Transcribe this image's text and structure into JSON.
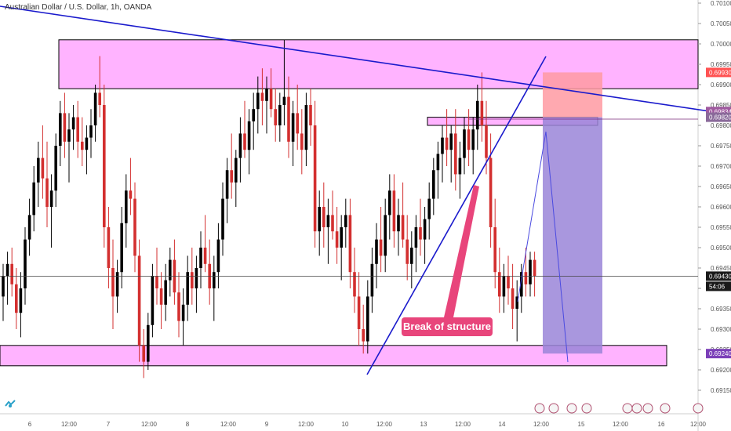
{
  "header": {
    "title": "Australian Dollar / U.S. Dollar, 1h, OANDA"
  },
  "annotation": {
    "text": "Break of structure"
  },
  "icons": {
    "logo": "tradingview-logo-icon",
    "events": [
      "flag-us-icon",
      "flag-au-icon",
      "flag-eu-icon"
    ]
  },
  "colors": {
    "bull": "#000000",
    "bear": "#d32f2f",
    "zone": "#ff99ff",
    "trend": "#1a1acc",
    "stop": "#ff9aa2",
    "target": "#9a85d8",
    "annotation": "#e8457b",
    "price_label": "#1a1a1a"
  },
  "chart_data": {
    "type": "candlestick",
    "symbol": "Australian Dollar / U.S. Dollar",
    "timeframe": "1h",
    "source": "OANDA",
    "ylim": [
      0.6915,
      0.701
    ],
    "y_ticks": [
      "0.70100",
      "0.70050",
      "0.70000",
      "0.69950",
      "0.69900",
      "0.69850",
      "0.69800",
      "0.69750",
      "0.69700",
      "0.69650",
      "0.69600",
      "0.69550",
      "0.69500",
      "0.69450",
      "0.69400",
      "0.69350",
      "0.69300",
      "0.69250",
      "0.69200",
      "0.69150"
    ],
    "x_ticks": [
      "6",
      "12:00",
      "7",
      "12:00",
      "8",
      "12:00",
      "9",
      "12:00",
      "10",
      "12:00",
      "13",
      "12:00",
      "14",
      "12:00",
      "15",
      "12:00",
      "16",
      "12:00"
    ],
    "price_labels": [
      {
        "text": "0.69930",
        "value": 0.6993,
        "color": "#ff5252"
      },
      {
        "text": "0.69834",
        "value": 0.69834,
        "color": "#a05aa0"
      },
      {
        "text": "0.69820",
        "value": 0.6982,
        "color": "#8a6a9a"
      },
      {
        "text": "0.69430",
        "value": 0.6943,
        "color": "#1a1a1a"
      },
      {
        "text": "54:06",
        "value": 0.69405,
        "color": "#1a1a1a"
      },
      {
        "text": "0.69240",
        "value": 0.6924,
        "color": "#7b3fb8"
      }
    ],
    "current_price": 0.6943,
    "zones": [
      {
        "name": "resistance",
        "from": 0.6989,
        "to": 0.7001
      },
      {
        "name": "support",
        "from": 0.6921,
        "to": 0.6926
      },
      {
        "name": "supply",
        "from": 0.698,
        "to": 0.6982
      }
    ],
    "position": {
      "type": "short",
      "entry": 0.6982,
      "stop": 0.6993,
      "target": 0.6924
    },
    "candles": [
      {
        "o": 0.6938,
        "h": 0.6946,
        "l": 0.6932,
        "c": 0.6943
      },
      {
        "o": 0.6943,
        "h": 0.6949,
        "l": 0.6936,
        "c": 0.6946
      },
      {
        "o": 0.6946,
        "h": 0.695,
        "l": 0.6938,
        "c": 0.6941
      },
      {
        "o": 0.6941,
        "h": 0.6945,
        "l": 0.693,
        "c": 0.6934
      },
      {
        "o": 0.6934,
        "h": 0.6944,
        "l": 0.6928,
        "c": 0.694
      },
      {
        "o": 0.694,
        "h": 0.6955,
        "l": 0.6936,
        "c": 0.6952
      },
      {
        "o": 0.6952,
        "h": 0.6962,
        "l": 0.6948,
        "c": 0.6958
      },
      {
        "o": 0.6958,
        "h": 0.697,
        "l": 0.6954,
        "c": 0.6966
      },
      {
        "o": 0.6966,
        "h": 0.6976,
        "l": 0.696,
        "c": 0.6972
      },
      {
        "o": 0.6972,
        "h": 0.698,
        "l": 0.6962,
        "c": 0.6967
      },
      {
        "o": 0.6967,
        "h": 0.6976,
        "l": 0.6955,
        "c": 0.696
      },
      {
        "o": 0.696,
        "h": 0.6968,
        "l": 0.695,
        "c": 0.6964
      },
      {
        "o": 0.6964,
        "h": 0.6978,
        "l": 0.696,
        "c": 0.6975
      },
      {
        "o": 0.6975,
        "h": 0.6986,
        "l": 0.697,
        "c": 0.6983
      },
      {
        "o": 0.6983,
        "h": 0.6988,
        "l": 0.6972,
        "c": 0.6976
      },
      {
        "o": 0.6976,
        "h": 0.6983,
        "l": 0.6966,
        "c": 0.6979
      },
      {
        "o": 0.6979,
        "h": 0.6985,
        "l": 0.6974,
        "c": 0.6982
      },
      {
        "o": 0.6982,
        "h": 0.6986,
        "l": 0.6972,
        "c": 0.6976
      },
      {
        "o": 0.6976,
        "h": 0.6982,
        "l": 0.697,
        "c": 0.6974
      },
      {
        "o": 0.6974,
        "h": 0.698,
        "l": 0.6968,
        "c": 0.6977
      },
      {
        "o": 0.6977,
        "h": 0.6984,
        "l": 0.6972,
        "c": 0.698
      },
      {
        "o": 0.698,
        "h": 0.699,
        "l": 0.6976,
        "c": 0.6988
      },
      {
        "o": 0.6988,
        "h": 0.6997,
        "l": 0.6982,
        "c": 0.6985
      },
      {
        "o": 0.6985,
        "h": 0.699,
        "l": 0.695,
        "c": 0.6955
      },
      {
        "o": 0.6955,
        "h": 0.696,
        "l": 0.694,
        "c": 0.6945
      },
      {
        "o": 0.6945,
        "h": 0.6952,
        "l": 0.693,
        "c": 0.6938
      },
      {
        "o": 0.6938,
        "h": 0.6947,
        "l": 0.6934,
        "c": 0.6944
      },
      {
        "o": 0.6944,
        "h": 0.696,
        "l": 0.694,
        "c": 0.6956
      },
      {
        "o": 0.6956,
        "h": 0.6968,
        "l": 0.695,
        "c": 0.6964
      },
      {
        "o": 0.6964,
        "h": 0.6972,
        "l": 0.6958,
        "c": 0.6962
      },
      {
        "o": 0.6962,
        "h": 0.6966,
        "l": 0.6944,
        "c": 0.6948
      },
      {
        "o": 0.6948,
        "h": 0.6952,
        "l": 0.6922,
        "c": 0.6926
      },
      {
        "o": 0.6926,
        "h": 0.693,
        "l": 0.6918,
        "c": 0.6922
      },
      {
        "o": 0.6922,
        "h": 0.6934,
        "l": 0.692,
        "c": 0.6931
      },
      {
        "o": 0.6931,
        "h": 0.6946,
        "l": 0.6928,
        "c": 0.6943
      },
      {
        "o": 0.6943,
        "h": 0.695,
        "l": 0.6936,
        "c": 0.694
      },
      {
        "o": 0.694,
        "h": 0.6944,
        "l": 0.693,
        "c": 0.6936
      },
      {
        "o": 0.6936,
        "h": 0.6946,
        "l": 0.6932,
        "c": 0.6942
      },
      {
        "o": 0.6942,
        "h": 0.695,
        "l": 0.6938,
        "c": 0.6947
      },
      {
        "o": 0.6947,
        "h": 0.6952,
        "l": 0.6936,
        "c": 0.6939
      },
      {
        "o": 0.6939,
        "h": 0.6944,
        "l": 0.6928,
        "c": 0.6932
      },
      {
        "o": 0.6932,
        "h": 0.694,
        "l": 0.6926,
        "c": 0.6936
      },
      {
        "o": 0.6936,
        "h": 0.6948,
        "l": 0.6932,
        "c": 0.6944
      },
      {
        "o": 0.6944,
        "h": 0.695,
        "l": 0.6936,
        "c": 0.694
      },
      {
        "o": 0.694,
        "h": 0.6948,
        "l": 0.6934,
        "c": 0.6945
      },
      {
        "o": 0.6945,
        "h": 0.6954,
        "l": 0.694,
        "c": 0.695
      },
      {
        "o": 0.695,
        "h": 0.6958,
        "l": 0.6944,
        "c": 0.6946
      },
      {
        "o": 0.6946,
        "h": 0.6952,
        "l": 0.6936,
        "c": 0.694
      },
      {
        "o": 0.694,
        "h": 0.6948,
        "l": 0.6932,
        "c": 0.6944
      },
      {
        "o": 0.6944,
        "h": 0.6956,
        "l": 0.694,
        "c": 0.6952
      },
      {
        "o": 0.6952,
        "h": 0.6966,
        "l": 0.6948,
        "c": 0.6962
      },
      {
        "o": 0.6962,
        "h": 0.6972,
        "l": 0.6956,
        "c": 0.6969
      },
      {
        "o": 0.6969,
        "h": 0.6978,
        "l": 0.6962,
        "c": 0.6966
      },
      {
        "o": 0.6966,
        "h": 0.6974,
        "l": 0.696,
        "c": 0.6972
      },
      {
        "o": 0.6972,
        "h": 0.6982,
        "l": 0.6966,
        "c": 0.6978
      },
      {
        "o": 0.6978,
        "h": 0.6986,
        "l": 0.6972,
        "c": 0.6974
      },
      {
        "o": 0.6974,
        "h": 0.6984,
        "l": 0.6968,
        "c": 0.6981
      },
      {
        "o": 0.6981,
        "h": 0.6988,
        "l": 0.6974,
        "c": 0.6984
      },
      {
        "o": 0.6984,
        "h": 0.6992,
        "l": 0.6978,
        "c": 0.6988
      },
      {
        "o": 0.6988,
        "h": 0.6994,
        "l": 0.698,
        "c": 0.6986
      },
      {
        "o": 0.6986,
        "h": 0.6992,
        "l": 0.6978,
        "c": 0.6989
      },
      {
        "o": 0.6989,
        "h": 0.6994,
        "l": 0.6982,
        "c": 0.6984
      },
      {
        "o": 0.6984,
        "h": 0.6989,
        "l": 0.6976,
        "c": 0.698
      },
      {
        "o": 0.698,
        "h": 0.6988,
        "l": 0.6976,
        "c": 0.6985
      },
      {
        "o": 0.6985,
        "h": 0.7001,
        "l": 0.698,
        "c": 0.6987
      },
      {
        "o": 0.6987,
        "h": 0.6992,
        "l": 0.6972,
        "c": 0.6976
      },
      {
        "o": 0.6976,
        "h": 0.6986,
        "l": 0.697,
        "c": 0.6983
      },
      {
        "o": 0.6983,
        "h": 0.699,
        "l": 0.6974,
        "c": 0.6978
      },
      {
        "o": 0.6978,
        "h": 0.6984,
        "l": 0.6968,
        "c": 0.6974
      },
      {
        "o": 0.6974,
        "h": 0.6988,
        "l": 0.697,
        "c": 0.6985
      },
      {
        "o": 0.6985,
        "h": 0.6989,
        "l": 0.6975,
        "c": 0.698
      },
      {
        "o": 0.698,
        "h": 0.6986,
        "l": 0.695,
        "c": 0.6954
      },
      {
        "o": 0.6954,
        "h": 0.6964,
        "l": 0.6948,
        "c": 0.696
      },
      {
        "o": 0.696,
        "h": 0.6966,
        "l": 0.695,
        "c": 0.6955
      },
      {
        "o": 0.6955,
        "h": 0.6962,
        "l": 0.6946,
        "c": 0.6958
      },
      {
        "o": 0.6958,
        "h": 0.6964,
        "l": 0.6952,
        "c": 0.6954
      },
      {
        "o": 0.6954,
        "h": 0.696,
        "l": 0.6946,
        "c": 0.695
      },
      {
        "o": 0.695,
        "h": 0.6958,
        "l": 0.6942,
        "c": 0.6955
      },
      {
        "o": 0.6955,
        "h": 0.6962,
        "l": 0.695,
        "c": 0.6958
      },
      {
        "o": 0.6958,
        "h": 0.6962,
        "l": 0.694,
        "c": 0.6944
      },
      {
        "o": 0.6944,
        "h": 0.695,
        "l": 0.6934,
        "c": 0.6938
      },
      {
        "o": 0.6938,
        "h": 0.6944,
        "l": 0.6926,
        "c": 0.693
      },
      {
        "o": 0.693,
        "h": 0.6936,
        "l": 0.6924,
        "c": 0.6927
      },
      {
        "o": 0.6927,
        "h": 0.6942,
        "l": 0.6924,
        "c": 0.6938
      },
      {
        "o": 0.6938,
        "h": 0.695,
        "l": 0.6934,
        "c": 0.6946
      },
      {
        "o": 0.6946,
        "h": 0.6956,
        "l": 0.694,
        "c": 0.6952
      },
      {
        "o": 0.6952,
        "h": 0.696,
        "l": 0.6944,
        "c": 0.6948
      },
      {
        "o": 0.6948,
        "h": 0.6962,
        "l": 0.6944,
        "c": 0.6958
      },
      {
        "o": 0.6958,
        "h": 0.6968,
        "l": 0.6952,
        "c": 0.6964
      },
      {
        "o": 0.6964,
        "h": 0.6968,
        "l": 0.695,
        "c": 0.6954
      },
      {
        "o": 0.6954,
        "h": 0.6962,
        "l": 0.6948,
        "c": 0.6958
      },
      {
        "o": 0.6958,
        "h": 0.6966,
        "l": 0.695,
        "c": 0.6952
      },
      {
        "o": 0.6952,
        "h": 0.6958,
        "l": 0.6942,
        "c": 0.6946
      },
      {
        "o": 0.6946,
        "h": 0.6954,
        "l": 0.694,
        "c": 0.695
      },
      {
        "o": 0.695,
        "h": 0.6958,
        "l": 0.6944,
        "c": 0.6955
      },
      {
        "o": 0.6955,
        "h": 0.6962,
        "l": 0.6948,
        "c": 0.6952
      },
      {
        "o": 0.6952,
        "h": 0.696,
        "l": 0.6946,
        "c": 0.6957
      },
      {
        "o": 0.6957,
        "h": 0.6966,
        "l": 0.6952,
        "c": 0.6962
      },
      {
        "o": 0.6962,
        "h": 0.6972,
        "l": 0.6958,
        "c": 0.6969
      },
      {
        "o": 0.6969,
        "h": 0.6976,
        "l": 0.6962,
        "c": 0.6973
      },
      {
        "o": 0.6973,
        "h": 0.698,
        "l": 0.6966,
        "c": 0.6977
      },
      {
        "o": 0.6977,
        "h": 0.6984,
        "l": 0.697,
        "c": 0.6974
      },
      {
        "o": 0.6974,
        "h": 0.698,
        "l": 0.6966,
        "c": 0.6978
      },
      {
        "o": 0.6978,
        "h": 0.6984,
        "l": 0.6964,
        "c": 0.6968
      },
      {
        "o": 0.6968,
        "h": 0.6976,
        "l": 0.6962,
        "c": 0.6972
      },
      {
        "o": 0.6972,
        "h": 0.6982,
        "l": 0.6968,
        "c": 0.6979
      },
      {
        "o": 0.6979,
        "h": 0.6984,
        "l": 0.697,
        "c": 0.6974
      },
      {
        "o": 0.6974,
        "h": 0.6982,
        "l": 0.6968,
        "c": 0.6979
      },
      {
        "o": 0.6979,
        "h": 0.699,
        "l": 0.6974,
        "c": 0.6986
      },
      {
        "o": 0.6986,
        "h": 0.6993,
        "l": 0.6976,
        "c": 0.698
      },
      {
        "o": 0.698,
        "h": 0.6986,
        "l": 0.6968,
        "c": 0.6972
      },
      {
        "o": 0.6972,
        "h": 0.6978,
        "l": 0.695,
        "c": 0.6955
      },
      {
        "o": 0.6955,
        "h": 0.6962,
        "l": 0.694,
        "c": 0.6944
      },
      {
        "o": 0.6944,
        "h": 0.695,
        "l": 0.6934,
        "c": 0.6938
      },
      {
        "o": 0.6938,
        "h": 0.6946,
        "l": 0.6934,
        "c": 0.6943
      },
      {
        "o": 0.6943,
        "h": 0.6948,
        "l": 0.6936,
        "c": 0.694
      },
      {
        "o": 0.694,
        "h": 0.6946,
        "l": 0.693,
        "c": 0.6935
      },
      {
        "o": 0.6935,
        "h": 0.6942,
        "l": 0.6927,
        "c": 0.6938
      },
      {
        "o": 0.6938,
        "h": 0.6946,
        "l": 0.6934,
        "c": 0.6944
      },
      {
        "o": 0.6944,
        "h": 0.695,
        "l": 0.6938,
        "c": 0.6941
      },
      {
        "o": 0.6941,
        "h": 0.6949,
        "l": 0.6938,
        "c": 0.6947
      },
      {
        "o": 0.6947,
        "h": 0.6949,
        "l": 0.6938,
        "c": 0.6943
      }
    ]
  }
}
